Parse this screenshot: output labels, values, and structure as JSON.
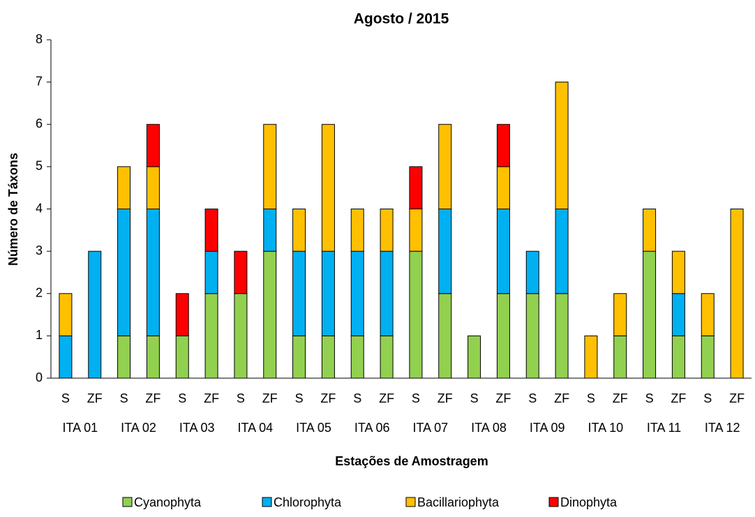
{
  "chart_data": {
    "type": "stacked_bar",
    "title": "Agosto / 2015",
    "x_label": "Estações de Amostragem",
    "y_label": "Número de Táxons",
    "categories": [
      "S",
      "ZF",
      "S",
      "ZF",
      "S",
      "ZF",
      "S",
      "ZF",
      "S",
      "ZF",
      "S",
      "ZF",
      "S",
      "ZF",
      "S",
      "ZF",
      "S",
      "ZF",
      "S",
      "ZF",
      "S",
      "ZF",
      "S",
      "ZF"
    ],
    "groups": [
      "ITA 01",
      "ITA 02",
      "ITA 03",
      "ITA 04",
      "ITA 05",
      "ITA 06",
      "ITA 07",
      "ITA 08",
      "ITA 09",
      "ITA 10",
      "ITA 11",
      "ITA 12"
    ],
    "series": [
      {
        "name": "Cyanophyta",
        "color": "#92d050",
        "values": [
          0,
          0,
          1,
          1,
          1,
          2,
          2,
          3,
          1,
          1,
          1,
          1,
          3,
          2,
          1,
          2,
          2,
          2,
          0,
          1,
          3,
          1,
          1,
          0
        ]
      },
      {
        "name": "Chlorophyta",
        "color": "#00b0f0",
        "values": [
          1,
          3,
          3,
          3,
          0,
          1,
          0,
          1,
          2,
          2,
          2,
          2,
          0,
          2,
          0,
          2,
          1,
          2,
          0,
          0,
          0,
          1,
          0,
          0
        ]
      },
      {
        "name": "Bacillariophyta",
        "color": "#ffc000",
        "values": [
          1,
          0,
          1,
          1,
          0,
          0,
          0,
          2,
          1,
          3,
          1,
          1,
          1,
          2,
          0,
          1,
          0,
          3,
          1,
          1,
          1,
          1,
          1,
          4
        ]
      },
      {
        "name": "Dinophyta",
        "color": "#ff0000",
        "values": [
          0,
          0,
          0,
          1,
          1,
          1,
          1,
          0,
          0,
          0,
          0,
          0,
          1,
          0,
          0,
          1,
          0,
          0,
          0,
          0,
          0,
          0,
          0,
          0
        ]
      }
    ],
    "ylim": [
      0,
      8
    ],
    "yticks": [
      0,
      1,
      2,
      3,
      4,
      5,
      6,
      7,
      8
    ],
    "legend": "bottom"
  }
}
